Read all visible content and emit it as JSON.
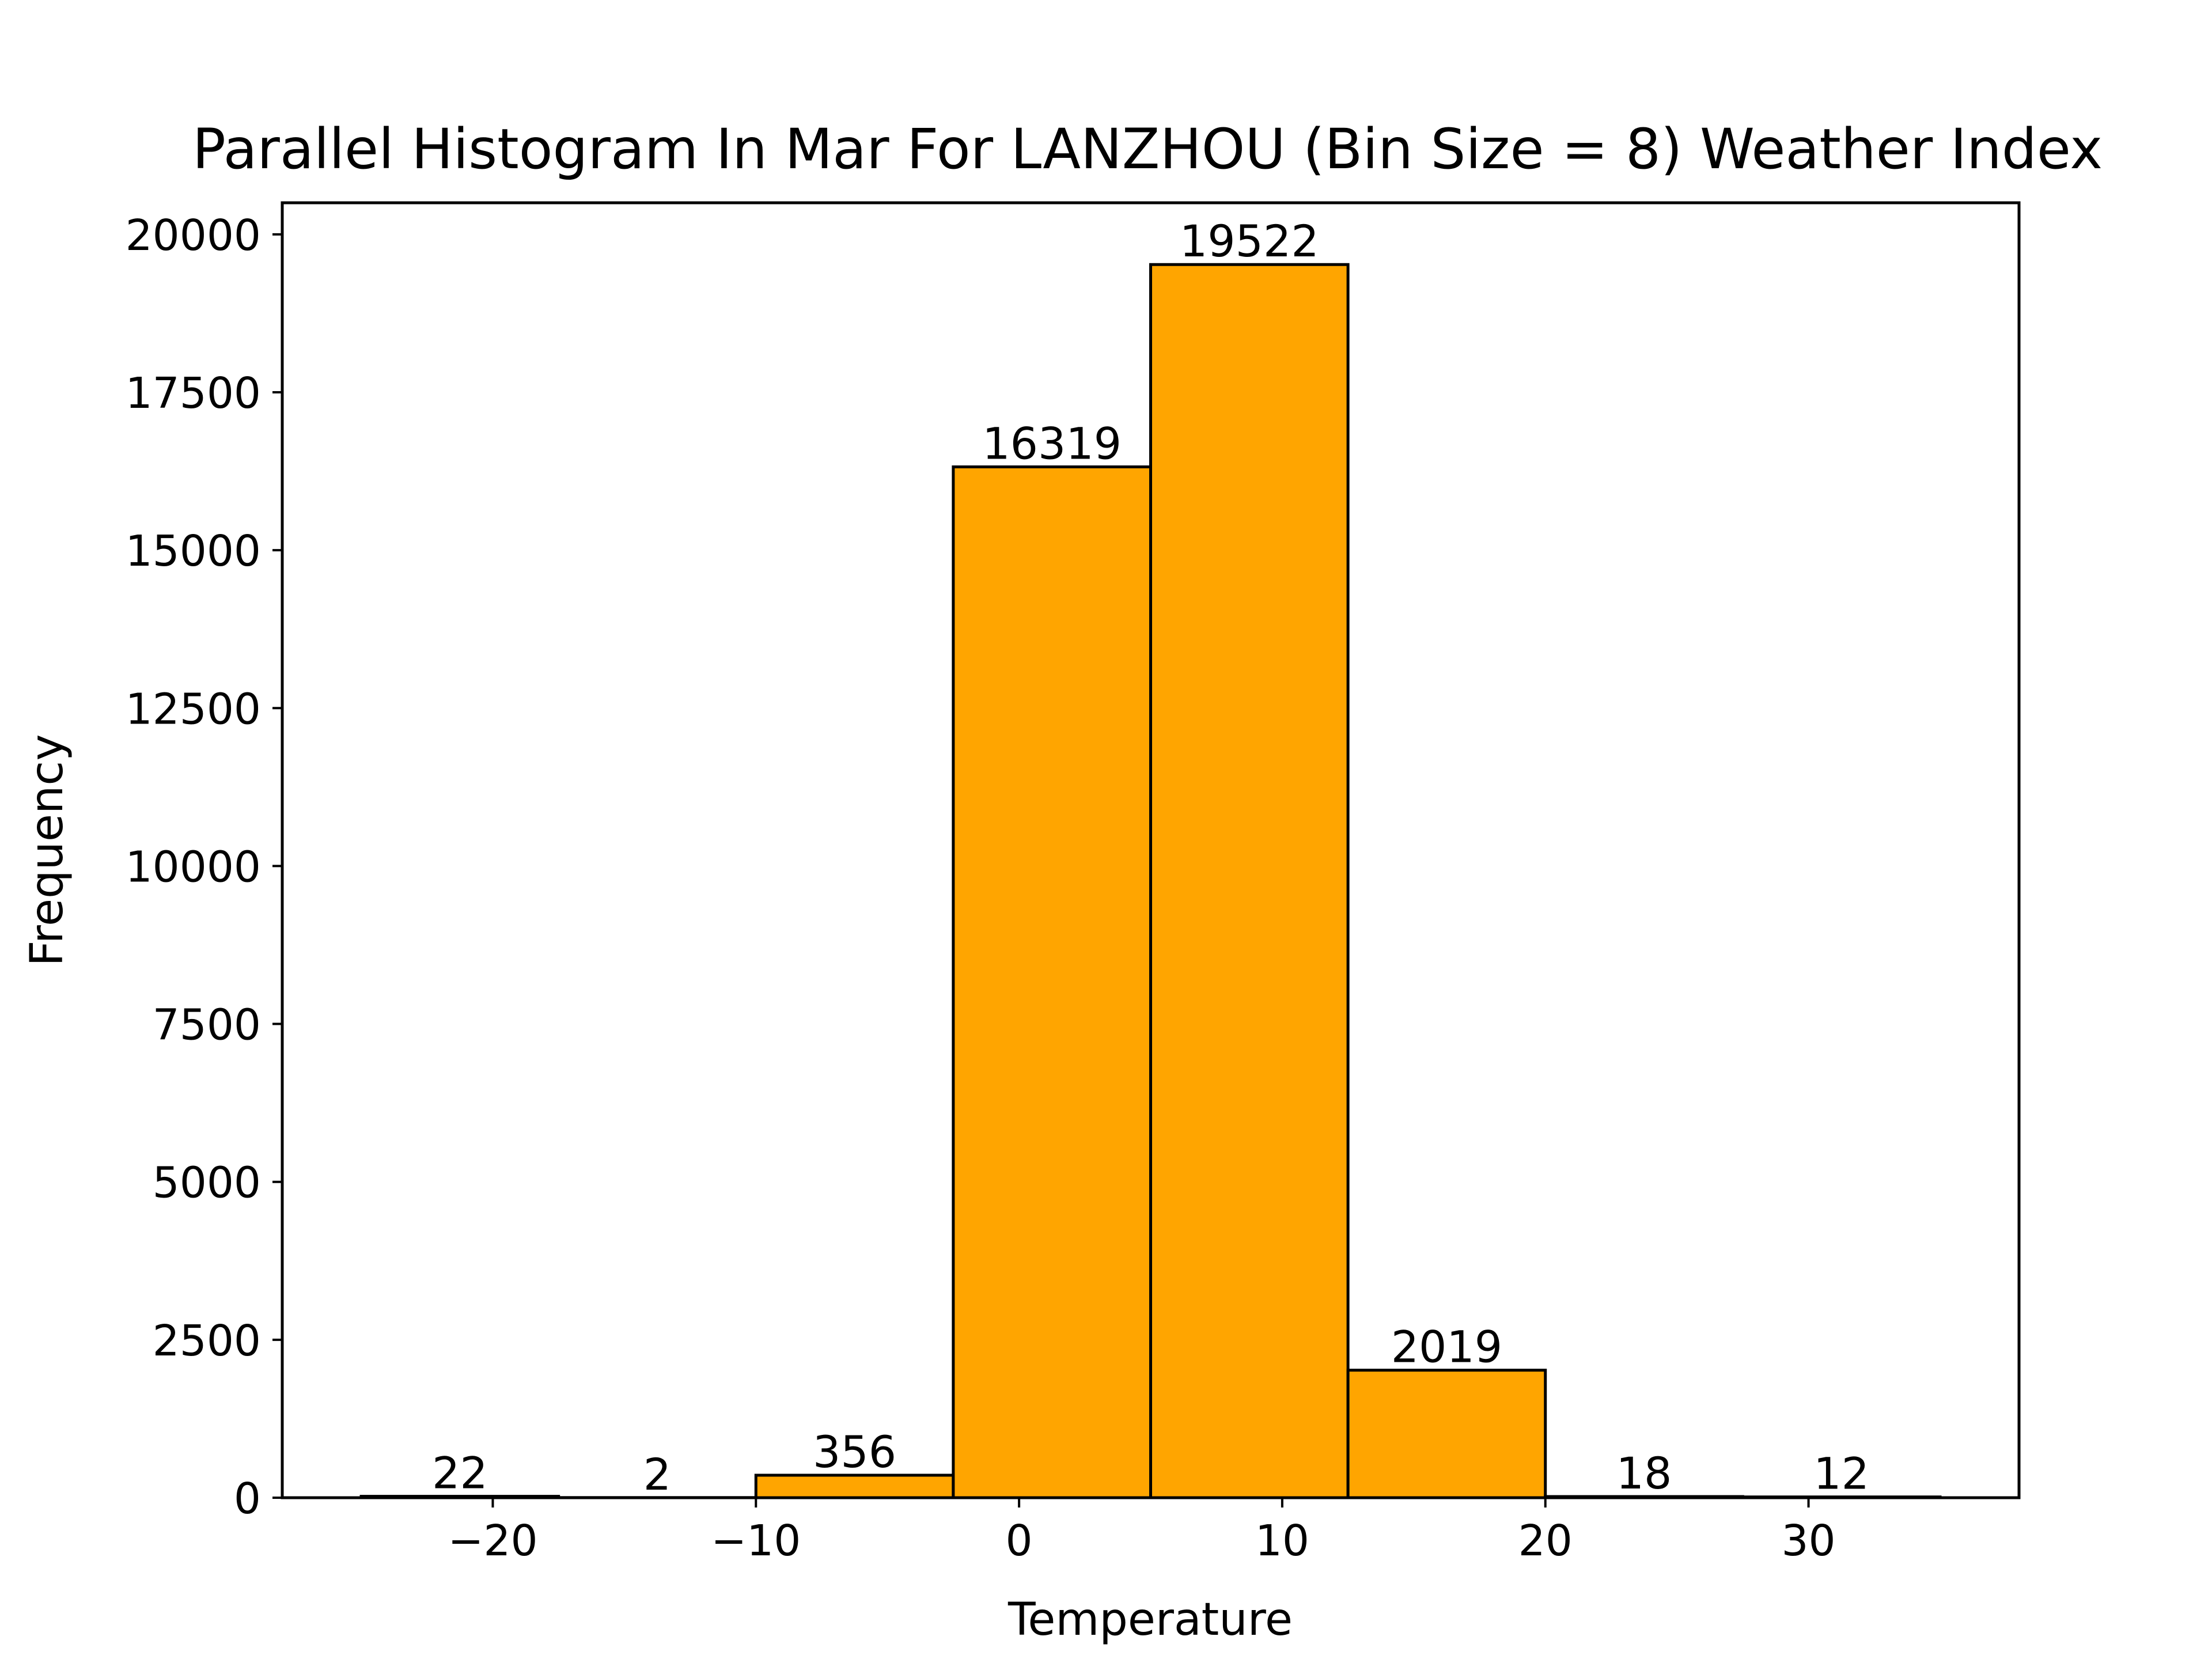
{
  "chart_data": {
    "type": "bar",
    "title": "Parallel Histogram In Mar For LANZHOU (Bin Size = 8) Weather Index",
    "xlabel": "Temperature",
    "ylabel": "Frequency",
    "bins": [
      {
        "x0": -25.0,
        "x1": -17.5,
        "count": 22
      },
      {
        "x0": -17.5,
        "x1": -10.0,
        "count": 2
      },
      {
        "x0": -10.0,
        "x1": -2.5,
        "count": 356
      },
      {
        "x0": -2.5,
        "x1": 5.0,
        "count": 16319
      },
      {
        "x0": 5.0,
        "x1": 12.5,
        "count": 19522
      },
      {
        "x0": 12.5,
        "x1": 20.0,
        "count": 2019
      },
      {
        "x0": 20.0,
        "x1": 27.5,
        "count": 18
      },
      {
        "x0": 27.5,
        "x1": 35.0,
        "count": 12
      }
    ],
    "bin_labels": [
      "22",
      "2",
      "356",
      "16319",
      "19522",
      "2019",
      "18",
      "12"
    ],
    "xlim": [
      -28.0,
      38.0
    ],
    "ylim": [
      0,
      20500
    ],
    "xticks": [
      -20,
      -10,
      0,
      10,
      20,
      30
    ],
    "xtick_labels": [
      "−20",
      "−10",
      "0",
      "10",
      "20",
      "30"
    ],
    "yticks": [
      0,
      2500,
      5000,
      7500,
      10000,
      12500,
      15000,
      17500,
      20000
    ],
    "ytick_labels": [
      "0",
      "2500",
      "5000",
      "7500",
      "10000",
      "12500",
      "15000",
      "17500",
      "20000"
    ],
    "grid": false,
    "bar_color": "#FFA500",
    "edge_color": "#000000"
  }
}
